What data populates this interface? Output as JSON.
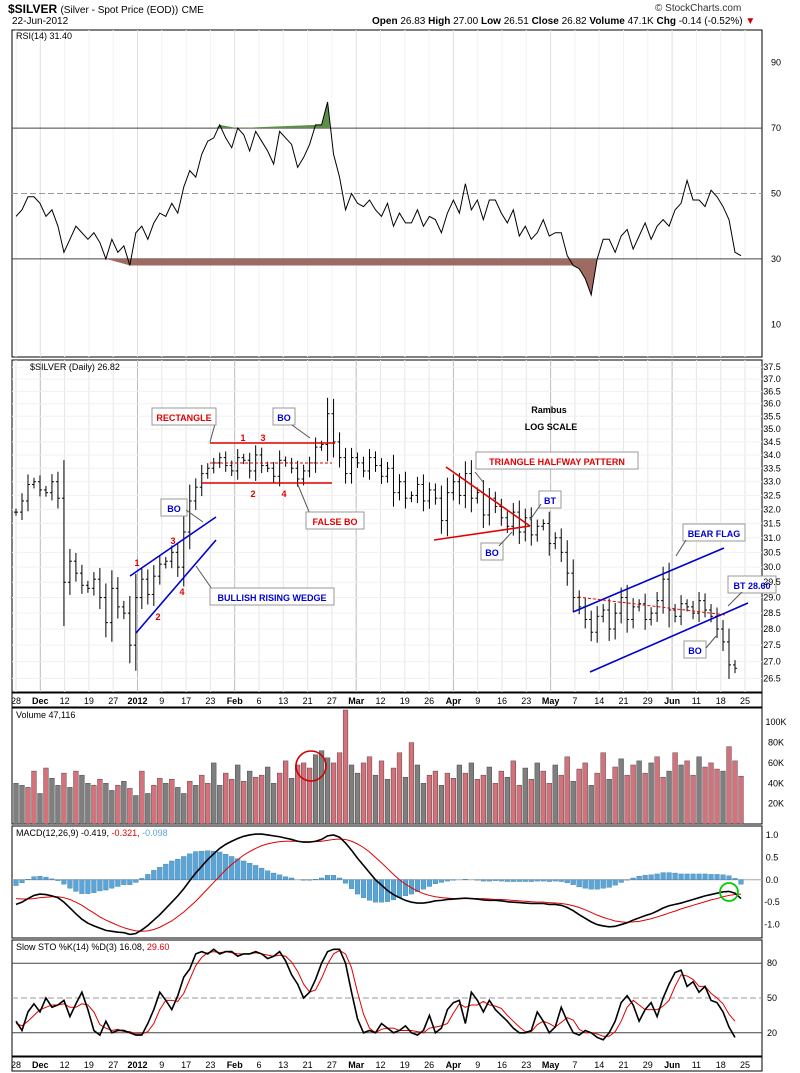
{
  "header": {
    "symbol": "$SILVER",
    "description": "(Silver - Spot Price (EOD))",
    "exchange": "CME",
    "date": "22-Jun-2012",
    "open_label": "Open",
    "open": "26.83",
    "high_label": "High",
    "high": "27.00",
    "low_label": "Low",
    "low": "26.51",
    "close_label": "Close",
    "close": "26.82",
    "volume_label": "Volume",
    "volume": "47.1K",
    "chg_label": "Chg",
    "chg": "-0.14 (-0.52%)",
    "watermark": "© StockCharts.com"
  },
  "colors": {
    "volume_up": "#d4717a",
    "volume_down": "#7f7f7f",
    "macd_hist": "#5aa5d6",
    "rsi_overbought_fill": "#5e8f4a",
    "rsi_oversold_fill": "#9e6b63",
    "annot_red": "#e00000",
    "annot_blue": "#0000d0",
    "signal_red": "#e00000",
    "circle_green": "#00cc00"
  },
  "chart_data": [
    {
      "type": "line",
      "panel": "rsi",
      "legend": "RSI(14) 31.40",
      "ylim": [
        0,
        100
      ],
      "y_ticks": [
        90,
        70,
        50,
        30,
        10
      ],
      "reference_lines": [
        70,
        50,
        30
      ],
      "values": [
        43,
        45,
        49,
        49,
        47,
        43,
        45,
        40,
        32,
        36,
        40,
        38,
        36,
        38,
        35,
        30,
        36,
        32,
        34,
        28,
        38,
        40,
        36,
        41,
        44,
        43,
        47,
        44,
        52,
        57,
        55,
        62,
        66,
        67,
        71,
        67,
        64,
        70,
        68,
        63,
        69,
        66,
        63,
        59,
        69,
        67,
        65,
        58,
        61,
        65,
        71,
        71,
        78,
        62,
        55,
        45,
        50,
        47,
        46,
        48,
        45,
        43,
        47,
        40,
        44,
        41,
        41,
        45,
        40,
        43,
        42,
        38,
        44,
        48,
        44,
        53,
        45,
        48,
        42,
        48,
        48,
        44,
        41,
        45,
        37,
        40,
        36,
        38,
        42,
        37,
        38,
        38,
        31,
        28,
        27,
        24,
        19,
        30,
        36,
        36,
        32,
        37,
        39,
        33,
        37,
        41,
        36,
        40,
        42,
        40,
        45,
        47,
        54,
        48,
        48,
        46,
        51,
        49,
        46,
        42,
        32,
        31
      ]
    },
    {
      "type": "ohlc",
      "panel": "price",
      "legend": "$SILVER (Daily) 26.82",
      "scale": "log",
      "ylim": [
        26.1,
        37.8
      ],
      "y_ticks": [
        37.5,
        37.0,
        36.5,
        36.0,
        35.5,
        35.0,
        34.5,
        34.0,
        33.5,
        33.0,
        32.5,
        32.0,
        31.5,
        31.0,
        30.5,
        30.0,
        29.5,
        29.0,
        28.5,
        28.0,
        27.5,
        27.0,
        26.5
      ],
      "close": [
        31.9,
        32.3,
        32.9,
        33.0,
        32.7,
        32.6,
        33.0,
        32.4,
        29.5,
        30.2,
        29.8,
        29.4,
        29.3,
        29.6,
        29.0,
        28.2,
        29.3,
        28.7,
        28.5,
        27.5,
        29.0,
        29.6,
        29.1,
        29.7,
        30.1,
        30.2,
        30.5,
        30.0,
        31.2,
        32.3,
        32.8,
        33.3,
        33.5,
        33.7,
        33.9,
        33.6,
        33.4,
        33.9,
        33.8,
        33.4,
        34.0,
        33.6,
        33.5,
        33.2,
        33.8,
        33.7,
        33.5,
        33.1,
        33.4,
        33.7,
        34.3,
        34.4,
        35.6,
        34.5,
        33.9,
        33.3,
        33.9,
        33.7,
        33.4,
        33.9,
        33.6,
        33.2,
        33.5,
        32.6,
        33.0,
        32.4,
        32.5,
        32.9,
        32.3,
        32.7,
        32.4,
        31.6,
        32.6,
        33.0,
        32.5,
        33.3,
        32.4,
        32.6,
        31.8,
        32.4,
        32.1,
        31.7,
        31.4,
        31.9,
        31.2,
        31.7,
        31.1,
        31.4,
        31.5,
        30.8,
        31.0,
        30.5,
        29.8,
        29.0,
        28.7,
        28.3,
        27.9,
        28.4,
        28.6,
        28.0,
        28.5,
        29.0,
        28.3,
        28.7,
        28.8,
        28.3,
        28.5,
        28.9,
        29.6,
        28.6,
        28.4,
        28.8,
        28.7,
        28.5,
        28.9,
        28.6,
        28.4,
        28.0,
        27.6,
        26.9,
        26.8
      ],
      "annotations": [
        "RECTANGLE",
        "1",
        "3",
        "2",
        "4",
        "FALSE BO",
        "BO",
        "BO",
        "3",
        "1",
        "2",
        "4",
        "BULLISH RISING WEDGE",
        "TRIANGLE HALFWAY PATTERN",
        "BT",
        "BO",
        "BEAR FLAG",
        "BT 28.60",
        "BO",
        "Rambus",
        "LOG SCALE"
      ]
    },
    {
      "type": "bar",
      "panel": "volume",
      "legend": "Volume 47,116",
      "ylim": [
        0,
        112
      ],
      "y_ticks": [
        "100K",
        "80K",
        "60K",
        "40K",
        "20K"
      ],
      "values_k": [
        40,
        38,
        36,
        52,
        30,
        55,
        45,
        38,
        50,
        36,
        52,
        48,
        40,
        38,
        44,
        40,
        33,
        38,
        42,
        35,
        28,
        52,
        30,
        38,
        45,
        40,
        44,
        36,
        30,
        42,
        38,
        48,
        40,
        60,
        38,
        50,
        44,
        58,
        42,
        52,
        46,
        48,
        56,
        40,
        50,
        62,
        45,
        58,
        60,
        55,
        68,
        72,
        65,
        60,
        70,
        112,
        58,
        50,
        60,
        66,
        48,
        62,
        44,
        55,
        70,
        46,
        80,
        58,
        40,
        48,
        52,
        38,
        50,
        45,
        58,
        50,
        60,
        44,
        48,
        56,
        40,
        52,
        46,
        62,
        38,
        55,
        44,
        60,
        52,
        40,
        58,
        48,
        66,
        42,
        54,
        60,
        38,
        50,
        70,
        44,
        56,
        64,
        48,
        58,
        62,
        50,
        60,
        66,
        46,
        52,
        70,
        58,
        62,
        48,
        66,
        56,
        60,
        54,
        52,
        76,
        62,
        47
      ],
      "up_pattern": [
        0,
        0,
        1,
        1,
        0,
        1,
        0,
        0,
        1,
        0,
        1,
        0,
        0,
        1,
        1,
        0,
        0,
        1,
        0,
        1,
        0,
        1,
        0,
        1,
        1,
        0,
        1,
        0,
        0,
        1,
        0,
        1,
        1,
        0,
        0,
        1,
        1,
        0,
        1,
        0,
        1,
        1,
        0,
        0,
        1,
        1,
        0,
        1,
        1,
        1,
        0,
        0,
        0,
        1,
        1,
        1,
        0,
        0,
        1,
        1,
        0,
        1,
        0,
        1,
        1,
        0,
        1,
        0,
        0,
        1,
        1,
        0,
        1,
        1,
        0,
        1,
        0,
        1,
        1,
        0,
        1,
        1,
        0,
        1,
        1,
        0,
        1,
        0,
        1,
        1,
        0,
        1,
        1,
        0,
        1,
        1,
        0,
        1,
        1,
        0,
        1,
        0,
        1,
        1,
        0,
        1,
        0,
        1,
        1,
        0,
        1,
        0,
        1,
        1,
        0,
        1,
        1,
        1,
        0,
        1,
        1,
        1
      ]
    },
    {
      "type": "line",
      "panel": "macd",
      "legend_label": "MACD(12,26,9)",
      "legend_macd": "-0.419,",
      "legend_signal": "-0.321,",
      "legend_hist": "-0.098",
      "ylim": [
        -1.3,
        1.2
      ],
      "y_ticks": [
        "1.0",
        "0.5",
        "0.0",
        "-0.5",
        "-1.0"
      ],
      "macd": [
        -0.55,
        -0.5,
        -0.42,
        -0.35,
        -0.32,
        -0.33,
        -0.36,
        -0.4,
        -0.5,
        -0.63,
        -0.76,
        -0.88,
        -0.97,
        -1.03,
        -1.08,
        -1.13,
        -1.15,
        -1.17,
        -1.18,
        -1.22,
        -1.2,
        -1.12,
        -1.02,
        -0.9,
        -0.78,
        -0.64,
        -0.5,
        -0.36,
        -0.2,
        -0.02,
        0.15,
        0.3,
        0.45,
        0.58,
        0.7,
        0.79,
        0.86,
        0.92,
        0.97,
        1.0,
        1.02,
        1.02,
        1.0,
        0.98,
        0.96,
        0.93,
        0.9,
        0.86,
        0.84,
        0.84,
        0.86,
        0.9,
        0.98,
        1.0,
        0.95,
        0.82,
        0.66,
        0.48,
        0.32,
        0.16,
        0.0,
        -0.12,
        -0.24,
        -0.33,
        -0.4,
        -0.46,
        -0.5,
        -0.52,
        -0.52,
        -0.5,
        -0.47,
        -0.46,
        -0.44,
        -0.43,
        -0.42,
        -0.41,
        -0.42,
        -0.43,
        -0.45,
        -0.46,
        -0.46,
        -0.47,
        -0.49,
        -0.5,
        -0.51,
        -0.52,
        -0.53,
        -0.53,
        -0.53,
        -0.55,
        -0.55,
        -0.57,
        -0.62,
        -0.69,
        -0.78,
        -0.86,
        -0.94,
        -1.0,
        -1.03,
        -1.05,
        -1.04,
        -1.0,
        -0.96,
        -0.9,
        -0.85,
        -0.8,
        -0.76,
        -0.7,
        -0.63,
        -0.58,
        -0.55,
        -0.52,
        -0.48,
        -0.44,
        -0.4,
        -0.36,
        -0.33,
        -0.3,
        -0.27,
        -0.26,
        -0.3,
        -0.42
      ],
      "signal": [
        -0.42,
        -0.43,
        -0.43,
        -0.42,
        -0.4,
        -0.39,
        -0.38,
        -0.38,
        -0.4,
        -0.44,
        -0.5,
        -0.57,
        -0.66,
        -0.74,
        -0.83,
        -0.9,
        -0.96,
        -1.02,
        -1.07,
        -1.11,
        -1.14,
        -1.15,
        -1.14,
        -1.11,
        -1.06,
        -0.99,
        -0.92,
        -0.82,
        -0.72,
        -0.6,
        -0.48,
        -0.34,
        -0.2,
        -0.06,
        0.08,
        0.22,
        0.34,
        0.45,
        0.55,
        0.63,
        0.7,
        0.76,
        0.8,
        0.83,
        0.85,
        0.86,
        0.86,
        0.86,
        0.85,
        0.85,
        0.85,
        0.86,
        0.88,
        0.9,
        0.91,
        0.9,
        0.86,
        0.8,
        0.72,
        0.62,
        0.5,
        0.38,
        0.25,
        0.12,
        0.0,
        -0.1,
        -0.18,
        -0.25,
        -0.31,
        -0.35,
        -0.38,
        -0.4,
        -0.41,
        -0.42,
        -0.42,
        -0.42,
        -0.42,
        -0.42,
        -0.42,
        -0.43,
        -0.44,
        -0.44,
        -0.45,
        -0.46,
        -0.47,
        -0.48,
        -0.49,
        -0.5,
        -0.5,
        -0.51,
        -0.52,
        -0.53,
        -0.55,
        -0.58,
        -0.62,
        -0.67,
        -0.73,
        -0.79,
        -0.84,
        -0.88,
        -0.92,
        -0.94,
        -0.95,
        -0.94,
        -0.93,
        -0.9,
        -0.87,
        -0.83,
        -0.79,
        -0.74,
        -0.7,
        -0.65,
        -0.61,
        -0.57,
        -0.53,
        -0.49,
        -0.45,
        -0.42,
        -0.38,
        -0.35,
        -0.33,
        -0.32
      ]
    },
    {
      "type": "line",
      "panel": "sto",
      "legend_label": "Slow STO %K(14) %D(3)",
      "legend_k": "16.08,",
      "legend_d": "29.60",
      "ylim": [
        0,
        100
      ],
      "y_ticks": [
        80,
        50,
        20
      ],
      "reference_lines": [
        80,
        50,
        20
      ],
      "k": [
        30,
        22,
        38,
        45,
        38,
        50,
        42,
        44,
        48,
        34,
        45,
        55,
        40,
        22,
        18,
        30,
        20,
        22,
        22,
        20,
        18,
        18,
        28,
        40,
        55,
        48,
        40,
        52,
        68,
        75,
        88,
        90,
        88,
        92,
        88,
        90,
        90,
        86,
        88,
        88,
        90,
        88,
        84,
        86,
        90,
        82,
        70,
        62,
        50,
        55,
        66,
        80,
        90,
        92,
        92,
        80,
        55,
        32,
        20,
        22,
        20,
        28,
        24,
        20,
        22,
        26,
        20,
        18,
        22,
        35,
        20,
        24,
        40,
        46,
        48,
        28,
        55,
        48,
        38,
        48,
        40,
        35,
        30,
        24,
        20,
        20,
        22,
        38,
        30,
        20,
        25,
        42,
        30,
        20,
        18,
        22,
        20,
        16,
        14,
        20,
        30,
        46,
        52,
        44,
        30,
        40,
        46,
        34,
        50,
        62,
        72,
        74,
        60,
        64,
        55,
        60,
        48,
        46,
        38,
        25,
        16
      ],
      "d": [
        28,
        26,
        30,
        35,
        40,
        42,
        44,
        44,
        45,
        42,
        42,
        45,
        44,
        38,
        27,
        24,
        22,
        23,
        21,
        21,
        19,
        19,
        21,
        28,
        40,
        48,
        48,
        47,
        54,
        66,
        78,
        85,
        89,
        90,
        89,
        90,
        89,
        88,
        88,
        88,
        89,
        88,
        87,
        86,
        87,
        86,
        81,
        73,
        62,
        55,
        57,
        67,
        79,
        88,
        91,
        88,
        76,
        55,
        36,
        24,
        20,
        23,
        24,
        24,
        22,
        22,
        22,
        21,
        20,
        24,
        25,
        26,
        28,
        37,
        45,
        42,
        44,
        44,
        47,
        44,
        43,
        41,
        35,
        30,
        25,
        21,
        21,
        27,
        30,
        28,
        25,
        29,
        33,
        31,
        23,
        20,
        20,
        19,
        17,
        17,
        21,
        30,
        42,
        48,
        44,
        40,
        40,
        40,
        43,
        48,
        60,
        70,
        69,
        66,
        60,
        60,
        54,
        50,
        45,
        36,
        30
      ]
    }
  ],
  "x_axis": {
    "top_labels": [
      "28",
      "Dec",
      "12",
      "19",
      "27",
      "2012",
      "9",
      "17",
      "23",
      "Feb",
      "6",
      "13",
      "21",
      "27",
      "Mar",
      "12",
      "19",
      "26",
      "Apr",
      "9",
      "16",
      "23",
      "May",
      "7",
      "14",
      "21",
      "29",
      "Jun",
      "11",
      "18",
      "25"
    ],
    "bottom_labels": [
      "28",
      "Dec",
      "12",
      "19",
      "27",
      "2012",
      "9",
      "17",
      "23",
      "Feb",
      "6",
      "13",
      "21",
      "27",
      "Mar",
      "12",
      "19",
      "26",
      "Apr",
      "9",
      "16",
      "23",
      "May",
      "7",
      "14",
      "21",
      "29",
      "Jun",
      "11",
      "18",
      "25"
    ]
  }
}
